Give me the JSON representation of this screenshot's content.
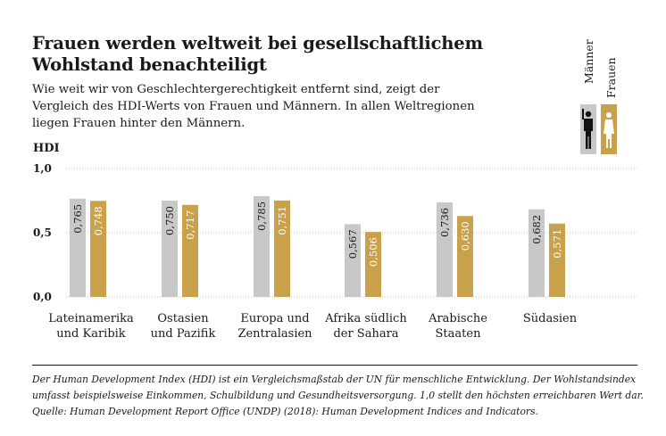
{
  "title_line1": "Frauen werden weltweit bei gesellschaftlichem",
  "title_line2": "Wohlstand benachteiligt",
  "subtitle_line1": "Wie weit wir von Geschlechtergerechtigkeit entfernt sind, zeigt der",
  "subtitle_line2": "Vergleich des HDI-Werts von Frauen und Männern. In allen Weltregionen",
  "subtitle_line3": "liegen Frauen hinter den Männern.",
  "legend": {
    "men_label": "Männer",
    "women_label": "Frauen",
    "men_icon": "man-icon",
    "women_icon": "woman-icon"
  },
  "colors": {
    "men": "#c8c8c8",
    "women": "#c9a14b",
    "text": "#1a1a1a"
  },
  "chart_data": {
    "type": "bar",
    "title": "Frauen werden weltweit bei gesellschaftlichem Wohlstand benachteiligt",
    "ylabel": "HDI",
    "ylim": [
      0,
      1
    ],
    "yticks": [
      "0,0",
      "0,5",
      "1,0"
    ],
    "categories": [
      [
        "Lateinamerika",
        "und Karibik"
      ],
      [
        "Ostasien",
        "und Pazifik"
      ],
      [
        "Europa und",
        "Zentralasien"
      ],
      [
        "Afrika südlich",
        "der Sahara"
      ],
      [
        "Arabische",
        "Staaten"
      ],
      [
        "Südasien"
      ]
    ],
    "series": [
      {
        "name": "Männer",
        "values": [
          0.765,
          0.75,
          0.785,
          0.567,
          0.736,
          0.682
        ],
        "labels": [
          "0,765",
          "0,750",
          "0,785",
          "0,567",
          "0,736",
          "0,682"
        ]
      },
      {
        "name": "Frauen",
        "values": [
          0.748,
          0.717,
          0.751,
          0.506,
          0.63,
          0.571
        ],
        "labels": [
          "0,748",
          "0,717",
          "0,751",
          "0,506",
          "0,630",
          "0,571"
        ]
      }
    ]
  },
  "footnote_line1": "Der Human Development Index (HDI) ist ein Vergleichsmaßstab der UN für menschliche Entwicklung. Der Wohlstandsindex",
  "footnote_line2": "umfasst beispielsweise Einkommen, Schulbildung und Gesundheitsversorgung. 1,0 stellt den höchsten erreichbaren Wert dar.",
  "footnote_line3": "Quelle: Human Development Report Office (UNDP) (2018): Human Development Indices and Indicators."
}
